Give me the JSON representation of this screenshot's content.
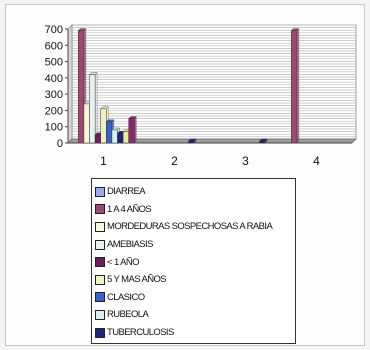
{
  "chart_data": {
    "type": "bar",
    "categories": [
      "1",
      "2",
      "3",
      "4"
    ],
    "ylim": [
      0,
      700
    ],
    "yticks": [
      0,
      100,
      200,
      300,
      400,
      500,
      600,
      700
    ],
    "grid": true,
    "legend_position": "bottom",
    "series": [
      {
        "name": "DIARREA",
        "color": "#9aa6ee",
        "values": [
          0,
          0,
          0,
          0
        ]
      },
      {
        "name": "1 A 4 AÑOS",
        "color": "#9b4a72",
        "values": [
          690,
          0,
          0,
          690
        ]
      },
      {
        "name": "MORDEDURAS SOSPECHOSAS A RABIA",
        "color": "#f6f6d8",
        "values": [
          240,
          0,
          0,
          0
        ]
      },
      {
        "name": "AMEBIASIS",
        "color": "#e8f0f0",
        "values": [
          420,
          0,
          0,
          0
        ]
      },
      {
        "name": "< 1 AÑO",
        "color": "#6a1f5c",
        "values": [
          50,
          0,
          0,
          0
        ]
      },
      {
        "name": "5 Y MAS AÑOS",
        "color": "#f0f0c0",
        "values": [
          210,
          0,
          0,
          0
        ]
      },
      {
        "name": "CLASICO",
        "color": "#3a62c4",
        "values": [
          130,
          0,
          0,
          0
        ]
      },
      {
        "name": "RUBEOLA",
        "color": "#d8f0f4",
        "values": [
          80,
          0,
          0,
          0
        ]
      },
      {
        "name": "TUBERCULOSIS",
        "color": "#23237a",
        "values": [
          60,
          12,
          12,
          0
        ]
      },
      {
        "name": "",
        "color": "#ecec9c",
        "values": [
          70,
          0,
          0,
          0
        ]
      },
      {
        "name": "",
        "color": "#852b6a",
        "values": [
          150,
          0,
          0,
          0
        ]
      }
    ]
  },
  "legend": {
    "items": [
      {
        "label": "DIARREA",
        "color": "#9aa6ee"
      },
      {
        "label": "1 A 4 AÑOS",
        "color": "#9b4a72"
      },
      {
        "label": "MORDEDURAS SOSPECHOSAS A RABIA",
        "color": "#f6f6d8"
      },
      {
        "label": "AMEBIASIS",
        "color": "#e8f0f0"
      },
      {
        "label": "< 1 AÑO",
        "color": "#6a1f5c"
      },
      {
        "label": "5 Y MAS AÑOS",
        "color": "#f0f0c0"
      },
      {
        "label": "CLASICO",
        "color": "#3a62c4"
      },
      {
        "label": "RUBEOLA",
        "color": "#d8f0f4"
      },
      {
        "label": "TUBERCULOSIS",
        "color": "#23237a"
      }
    ]
  }
}
